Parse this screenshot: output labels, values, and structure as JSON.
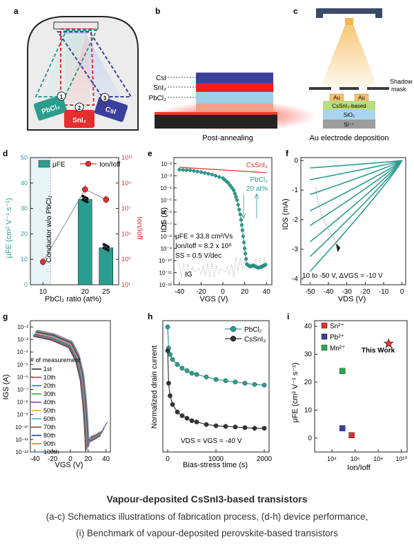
{
  "caption": {
    "title": "Vapour-deposited CsSnI3-based transistors",
    "line1": "(a-c) Schematics illustrations of fabrication process, (d-h) device performance,",
    "line2": "(i) Benchmark of vapour-deposited perovskite-based transistors"
  },
  "panel_letters": {
    "a": "a",
    "b": "b",
    "c": "c",
    "d": "d",
    "e": "e",
    "f": "f",
    "g": "g",
    "h": "h",
    "i": "i"
  },
  "panel_a": {
    "sources": [
      {
        "num": "1",
        "label": "PbCl₂",
        "color": "#2a9d8f"
      },
      {
        "num": "2",
        "label": "SnI₂",
        "color": "#e52e2e"
      },
      {
        "num": "3",
        "label": "CsI",
        "color": "#3b3f9c"
      }
    ]
  },
  "panel_b": {
    "layers": [
      "CsI",
      "SnI₂",
      "PbCl₂"
    ],
    "caption": "Post-annealing",
    "colors": {
      "csi": "#3b3f9c",
      "sni2": "#ee1c1c",
      "pbcl2": "#9ecfe6"
    }
  },
  "panel_c": {
    "shadow_mask": [
      "Shadow",
      "mask"
    ],
    "electrode": "Au",
    "stack": [
      "CsSnI₃-based",
      "SiO₂",
      "Si⁺⁺"
    ],
    "caption": "Au electrode deposition"
  },
  "chart_data": [
    {
      "panel": "d",
      "type": "bar",
      "categories": [
        "10",
        "20",
        "25"
      ],
      "xlabel": "PbCl₂ ratio (at%)",
      "ylabel": "μFE (cm² V⁻¹ s⁻¹)",
      "y2label": "Ion/Ioff",
      "ylim": [
        0,
        50
      ],
      "yticks": [
        "0",
        "10",
        "20",
        "30",
        "40",
        "50"
      ],
      "y2ticks": [
        "10¹",
        "10³",
        "10⁵",
        "10⁷",
        "10⁹",
        "10¹¹"
      ],
      "y2log": [
        1,
        11
      ],
      "bars": [
        {
          "x": 20,
          "value": 33.5
        },
        {
          "x": 25,
          "value": 14.5
        }
      ],
      "ion_ioff_log10": [
        {
          "x": 10,
          "value": 2.8
        },
        {
          "x": 20,
          "value": 8.5
        },
        {
          "x": 25,
          "value": 7.7
        }
      ],
      "legend": [
        "μFE",
        "Ion/Ioff"
      ],
      "annotation": "Conductor w/o PbCl₂",
      "colors": {
        "bar": "#2a9d8f",
        "line": "#e52e2e"
      }
    },
    {
      "panel": "e",
      "type": "line",
      "xlabel": "VGS (V)",
      "ylabel": "IDS (A)",
      "xlim": [
        -45,
        45
      ],
      "xticks": [
        "-40",
        "-20",
        "0",
        "20",
        "40"
      ],
      "ylog": [
        -12,
        -1.5
      ],
      "yticks": [
        "10⁻²",
        "10⁻³",
        "10⁻⁴",
        "10⁻⁵",
        "10⁻⁶",
        "10⁻⁷",
        "10⁻⁸",
        "10⁻⁹",
        "10⁻¹⁰",
        "10⁻¹¹",
        "10⁻¹²"
      ],
      "series": [
        {
          "name": "CsSnI₃",
          "color": "#e52e2e",
          "x": [
            -40,
            40
          ],
          "log10": [
            -2.3,
            -2.75
          ]
        },
        {
          "name": "PbCl₂",
          "color": "#2a9d8f",
          "x": [
            -40,
            -30,
            -20,
            -10,
            0,
            5,
            10,
            13,
            16,
            18,
            20,
            22,
            25,
            28,
            30,
            33,
            36,
            38,
            40
          ],
          "log10": [
            -2.5,
            -2.55,
            -2.7,
            -2.9,
            -3.2,
            -3.6,
            -4.2,
            -5.0,
            -6.2,
            -7.5,
            -9.0,
            -10.3,
            -10.5,
            -10.4,
            -10.5,
            -10.6,
            -10.5,
            -10.4,
            -10.3
          ]
        }
      ],
      "legend": [
        "CsSnI₃",
        "PbCl₂",
        "20 at%"
      ],
      "stats": [
        "μFE = 33.8 cm²/Vs",
        "Ion/Ioff = 8.2 x 10⁸",
        "SS = 0.5 V/dec"
      ],
      "ig_label": "IG"
    },
    {
      "panel": "f",
      "type": "line",
      "xlabel": "VDS (V)",
      "ylabel": "IDS (mA)",
      "xlim": [
        -55,
        2
      ],
      "xticks": [
        "-50",
        "-40",
        "-30",
        "-20",
        "-10",
        "0"
      ],
      "ylim": [
        -4.2,
        0.1
      ],
      "yticks": [
        "0",
        "-1",
        "-2",
        "-3",
        "-4"
      ],
      "series_end_values": [
        -0.25,
        -0.65,
        -1.15,
        -1.7,
        -2.2,
        -2.75,
        -3.25,
        -3.75
      ],
      "annotation": "10 to -50 V, ΔVGS = -10 V",
      "color": "#2a9d8f"
    },
    {
      "panel": "g",
      "type": "line",
      "xlabel": "VGS (V)",
      "ylabel": "IGS (A)",
      "xlim": [
        -45,
        45
      ],
      "xticks": [
        "-40",
        "-20",
        "0",
        "20",
        "40"
      ],
      "ylog": [
        -12,
        -1.5
      ],
      "yticks": [
        "10⁻²",
        "10⁻³",
        "10⁻⁴",
        "10⁻⁵",
        "10⁻⁶",
        "10⁻⁷",
        "10⁻⁸",
        "10⁻⁹",
        "10⁻¹⁰",
        "10⁻¹¹",
        "10⁻¹²"
      ],
      "legend_title": "# of measurement",
      "series": [
        {
          "name": "1st",
          "color": "#333333"
        },
        {
          "name": "10th",
          "color": "#e52e2e"
        },
        {
          "name": "20th",
          "color": "#2f6fd6"
        },
        {
          "name": "30th",
          "color": "#2aa84a"
        },
        {
          "name": "40th",
          "color": "#8a3fbf"
        },
        {
          "name": "50th",
          "color": "#e8a63a"
        },
        {
          "name": "60th",
          "color": "#3bb6c8"
        },
        {
          "name": "70th",
          "color": "#8b4a2b"
        },
        {
          "name": "80th",
          "color": "#1e3f9a"
        },
        {
          "name": "90th",
          "color": "#ef7d22"
        },
        {
          "name": "100th",
          "color": "#5c86c9"
        }
      ]
    },
    {
      "panel": "h",
      "type": "line",
      "xlabel": "Bias-stress time (s)",
      "ylabel": "Normalized drain current",
      "xlim": [
        -100,
        2100
      ],
      "xticks": [
        "0",
        "1000",
        "2000"
      ],
      "ylim": [
        0,
        1.05
      ],
      "series": [
        {
          "name": "PbCl₂",
          "color": "#2a9d8f",
          "x": [
            0,
            20,
            50,
            100,
            200,
            300,
            400,
            500,
            600,
            800,
            1000,
            1200,
            1400,
            1600,
            1800,
            2000
          ],
          "values": [
            1.0,
            0.83,
            0.78,
            0.74,
            0.7,
            0.67,
            0.65,
            0.63,
            0.62,
            0.6,
            0.58,
            0.57,
            0.56,
            0.55,
            0.54,
            0.535
          ]
        },
        {
          "name": "CsSnI₃",
          "color": "#333333",
          "x": [
            0,
            20,
            50,
            100,
            200,
            300,
            400,
            500,
            600,
            800,
            1000,
            1200,
            1400,
            1600,
            1800,
            2000
          ],
          "values": [
            0.81,
            0.55,
            0.45,
            0.38,
            0.32,
            0.29,
            0.27,
            0.25,
            0.24,
            0.22,
            0.21,
            0.205,
            0.2,
            0.195,
            0.19,
            0.19
          ]
        }
      ],
      "annotation": "VDS = VGS = -40 V"
    },
    {
      "panel": "i",
      "type": "scatter",
      "xlabel": "Ion/Ioff",
      "ylabel": "μFE (cm² V⁻¹ s⁻¹)",
      "xlog": [
        2.5,
        10.5
      ],
      "xticks": [
        "10⁴",
        "10⁶",
        "10⁸",
        "10¹⁰"
      ],
      "ylim": [
        -5,
        42
      ],
      "yticks": [
        "0",
        "10",
        "20",
        "30",
        "40"
      ],
      "series": [
        {
          "name": "Sn²⁺",
          "color": "#e52e2e",
          "points": [
            [
              5.7,
              1
            ]
          ]
        },
        {
          "name": "Pb²⁺",
          "color": "#3b3f9c",
          "points": [
            [
              4.9,
              3.5
            ]
          ]
        },
        {
          "name": "Mn²⁺",
          "color": "#2aa84a",
          "points": [
            [
              4.9,
              24
            ]
          ]
        }
      ],
      "this_work": {
        "label": "This Work",
        "point": [
          8.9,
          33.8
        ],
        "color": "#e52e2e"
      }
    }
  ]
}
